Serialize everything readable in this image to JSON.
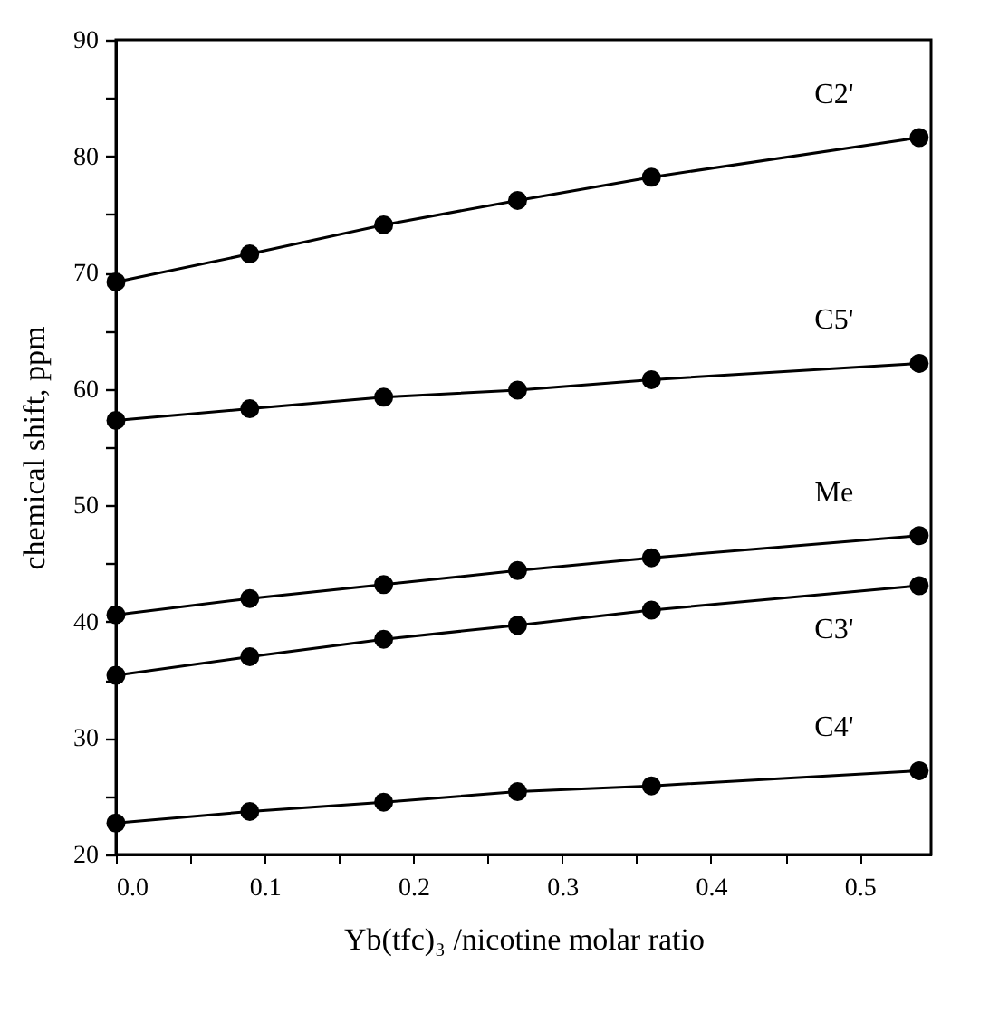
{
  "chart_data": {
    "type": "line",
    "xlabel": "Yb(tfc)₃ /nicotine molar ratio",
    "ylabel": "chemical shift, ppm",
    "x": [
      0,
      0.09,
      0.18,
      0.27,
      0.36,
      0.54
    ],
    "series": [
      {
        "name": "C2'",
        "color": "#000000",
        "values": [
          69.2,
          71.6,
          74.1,
          76.2,
          78.2,
          81.6
        ]
      },
      {
        "name": "C5'",
        "color": "#000000",
        "values": [
          57.3,
          58.3,
          59.3,
          59.9,
          60.8,
          62.2
        ]
      },
      {
        "name": "Me",
        "color": "#000000",
        "values": [
          40.6,
          42.0,
          43.2,
          44.4,
          45.5,
          47.4
        ]
      },
      {
        "name": "C3'",
        "color": "#000000",
        "values": [
          35.4,
          37.0,
          38.5,
          39.7,
          41.0,
          43.1
        ]
      },
      {
        "name": "C4'",
        "color": "#000000",
        "values": [
          22.7,
          23.7,
          24.5,
          25.4,
          25.9,
          27.2
        ]
      }
    ],
    "xlim": [
      0,
      0.548
    ],
    "xticks": [
      {
        "value": 0,
        "label": "0.0"
      },
      {
        "value": 0.05,
        "label": null
      },
      {
        "value": 0.1,
        "label": "0.1"
      },
      {
        "value": 0.15,
        "label": null
      },
      {
        "value": 0.2,
        "label": "0.2"
      },
      {
        "value": 0.25,
        "label": null
      },
      {
        "value": 0.3,
        "label": "0.3"
      },
      {
        "value": 0.35,
        "label": null
      },
      {
        "value": 0.4,
        "label": "0.4"
      },
      {
        "value": 0.45,
        "label": null
      },
      {
        "value": 0.5,
        "label": "0.5"
      }
    ],
    "ylim": [
      20,
      90
    ],
    "yticks": [
      20,
      {
        "value": 25,
        "label": null
      },
      30,
      {
        "value": 35,
        "label": null
      },
      40,
      {
        "value": 45,
        "label": null
      },
      50,
      {
        "value": 55,
        "label": null
      },
      60,
      {
        "value": 65,
        "label": null
      },
      70,
      {
        "value": 75,
        "label": null
      },
      80,
      {
        "value": 85,
        "label": null
      },
      90
    ],
    "grid": false,
    "legend": false,
    "marker": "circle",
    "line_style": "solid"
  }
}
